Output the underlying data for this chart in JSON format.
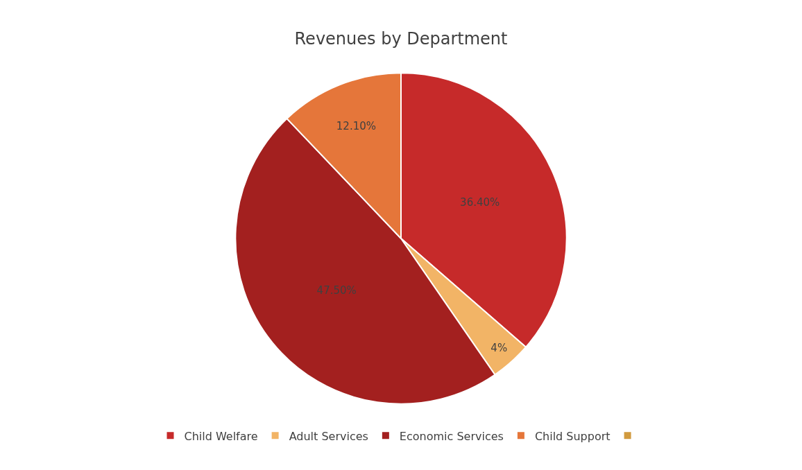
{
  "chart_data": {
    "type": "pie",
    "title": "Revenues by Department",
    "categories": [
      "Child Welfare",
      "Adult Services",
      "Economic Services",
      "Child Support",
      null
    ],
    "values": [
      36.4,
      4,
      47.5,
      12.1,
      0
    ],
    "value_labels": [
      "36.40%",
      "4%",
      "47.50%",
      "12.10%",
      null
    ],
    "colors": [
      "#c62a2a",
      "#f2b466",
      "#a3201f",
      "#e5763a",
      "#d19a3e"
    ],
    "legend": "bottom"
  }
}
